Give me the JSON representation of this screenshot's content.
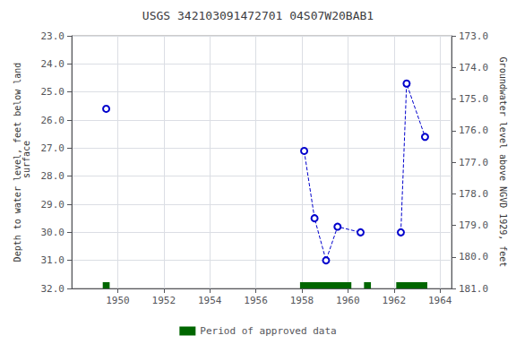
{
  "chart_data": {
    "type": "line",
    "title": "USGS 342103091472701 04S07W20BAB1",
    "ylabel": "Depth to water level, feet below land\n surface",
    "y2label": "Groundwater level above NGVD 1929, feet",
    "xlim": [
      1948,
      1964.5
    ],
    "xticks": [
      1950,
      1952,
      1954,
      1956,
      1958,
      1960,
      1962,
      1964
    ],
    "ylim": [
      32.0,
      23.0
    ],
    "yticks": [
      {
        "value": 23.0,
        "label": "23.0"
      },
      {
        "value": 24.0,
        "label": "24.0"
      },
      {
        "value": 25.0,
        "label": "25.0"
      },
      {
        "value": 26.0,
        "label": "26.0"
      },
      {
        "value": 27.0,
        "label": "27.0"
      },
      {
        "value": 28.0,
        "label": "28.0"
      },
      {
        "value": 29.0,
        "label": "29.0"
      },
      {
        "value": 30.0,
        "label": "30.0"
      },
      {
        "value": 31.0,
        "label": "31.0"
      },
      {
        "value": 32.0,
        "label": "32.0"
      }
    ],
    "y2lim": [
      181.0,
      173.0
    ],
    "y2ticks": [
      {
        "value": 173.0,
        "label": "173.0"
      },
      {
        "value": 174.0,
        "label": "174.0"
      },
      {
        "value": 175.0,
        "label": "175.0"
      },
      {
        "value": 176.0,
        "label": "176.0"
      },
      {
        "value": 177.0,
        "label": "177.0"
      },
      {
        "value": 178.0,
        "label": "178.0"
      },
      {
        "value": 179.0,
        "label": "179.0"
      },
      {
        "value": 180.0,
        "label": "180.0"
      },
      {
        "value": 181.0,
        "label": "181.0"
      }
    ],
    "grid": true,
    "legend": "bottom",
    "series": [
      {
        "type": "line",
        "color": "#0000cc",
        "marker": "open_circle",
        "line_style": "dashed",
        "x": [
          1949.5
        ],
        "values": [
          25.6
        ]
      },
      {
        "type": "line",
        "color": "#0000cc",
        "marker": "open_circle",
        "line_style": "dashed",
        "x": [
          1958.1,
          1958.55,
          1959.05,
          1959.55,
          1960.55
        ],
        "values": [
          27.1,
          29.5,
          31.0,
          29.8,
          30.0
        ]
      },
      {
        "type": "line",
        "color": "#0000cc",
        "marker": "open_circle",
        "line_style": "dashed",
        "x": [
          1962.3,
          1962.55,
          1963.35
        ],
        "values": [
          30.0,
          24.7,
          26.6
        ]
      },
      {
        "name": "Period of approved data",
        "type": "span",
        "color": "#006600",
        "values": [
          [
            1949.35,
            1949.65
          ],
          [
            1957.92,
            1960.15
          ],
          [
            1960.7,
            1961.0
          ],
          [
            1962.1,
            1963.45
          ]
        ]
      }
    ]
  }
}
